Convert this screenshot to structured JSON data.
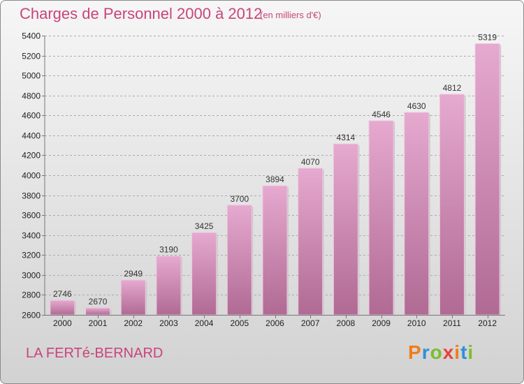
{
  "title": "Charges de Personnel 2000 à 2012",
  "subtitle": "(en milliers d'€)",
  "commune": "LA FERTé-BERNARD",
  "logo": {
    "letters": [
      "P",
      "r",
      "o",
      "x",
      "i",
      "t",
      "i"
    ],
    "colors": [
      "#f07d1a",
      "#2e8fd8",
      "#7bbd2c",
      "#e8433a",
      "#f07d1a",
      "#2e8fd8",
      "#7bbd2c"
    ]
  },
  "chart_data": {
    "type": "bar",
    "categories": [
      "2000",
      "2001",
      "2002",
      "2003",
      "2004",
      "2005",
      "2006",
      "2007",
      "2008",
      "2009",
      "2010",
      "2011",
      "2012"
    ],
    "values": [
      2746,
      2670,
      2949,
      3190,
      3425,
      3700,
      3894,
      4070,
      4314,
      4546,
      4630,
      4812,
      5319
    ],
    "ylim": [
      2600,
      5400
    ],
    "yticks": [
      2600,
      2800,
      3000,
      3200,
      3400,
      3600,
      3800,
      4000,
      4200,
      4400,
      4600,
      4800,
      5000,
      5200,
      5400
    ],
    "grid": true,
    "colors": {
      "bar_top": "#e6a9cf",
      "bar_bottom": "#b06a93",
      "axis_text": "#222222",
      "value_text": "#333333"
    }
  }
}
